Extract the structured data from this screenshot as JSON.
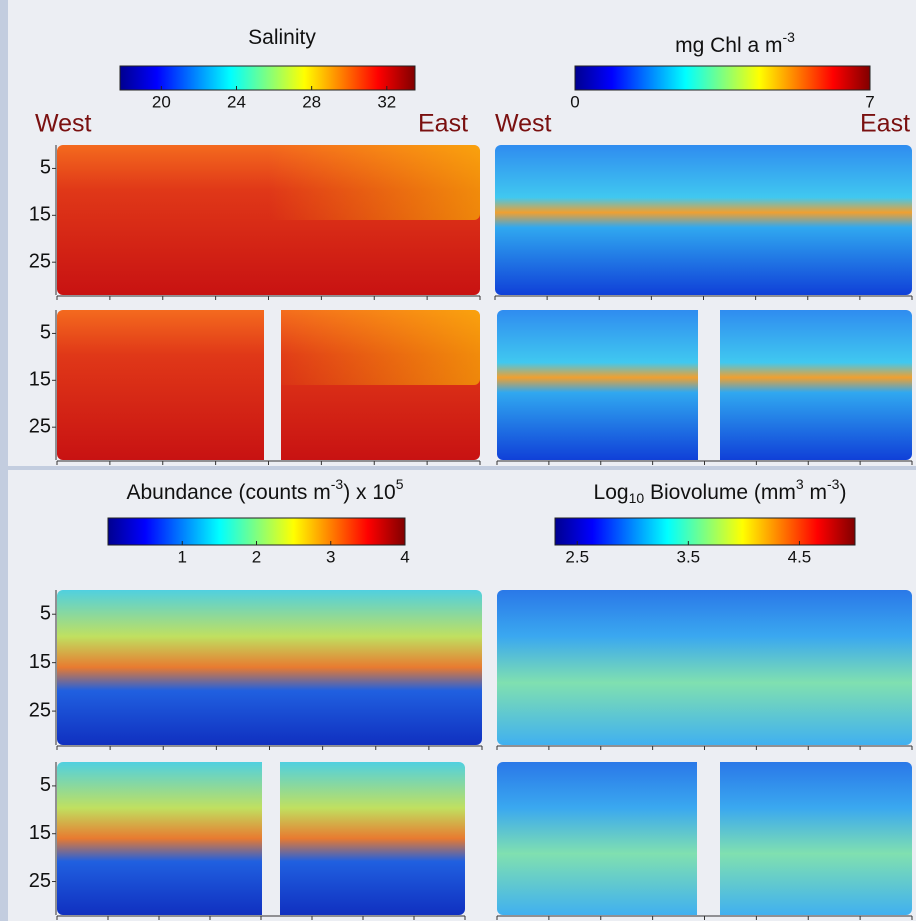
{
  "panels": [
    {
      "title": [
        "Salinity"
      ],
      "colorbar": {
        "lim": [
          17.8,
          33.5
        ],
        "ticks": [
          20,
          24,
          28,
          32
        ]
      },
      "west": "West",
      "east": "East"
    },
    {
      "title": [
        "mg Chl a m",
        "-3"
      ],
      "colorbar": {
        "lim": [
          0,
          7
        ],
        "ticks": [
          0,
          7
        ]
      },
      "west": "West",
      "east": "East"
    },
    {
      "title": [
        "Abundance (counts m",
        "-3",
        ") x 10",
        "5"
      ],
      "colorbar": {
        "lim": [
          0,
          4
        ],
        "ticks": [
          1,
          2,
          3,
          4
        ]
      }
    },
    {
      "title": [
        "Log",
        "10",
        " Biovolume (mm",
        "3",
        " m",
        "-3",
        ")"
      ],
      "colorbar": {
        "lim": [
          2.3,
          5.0
        ],
        "ticks": [
          2.5,
          3.5,
          4.5
        ]
      }
    }
  ],
  "depth_ticks": [
    5,
    15,
    25
  ],
  "depth_lim": [
    0,
    32
  ]
}
